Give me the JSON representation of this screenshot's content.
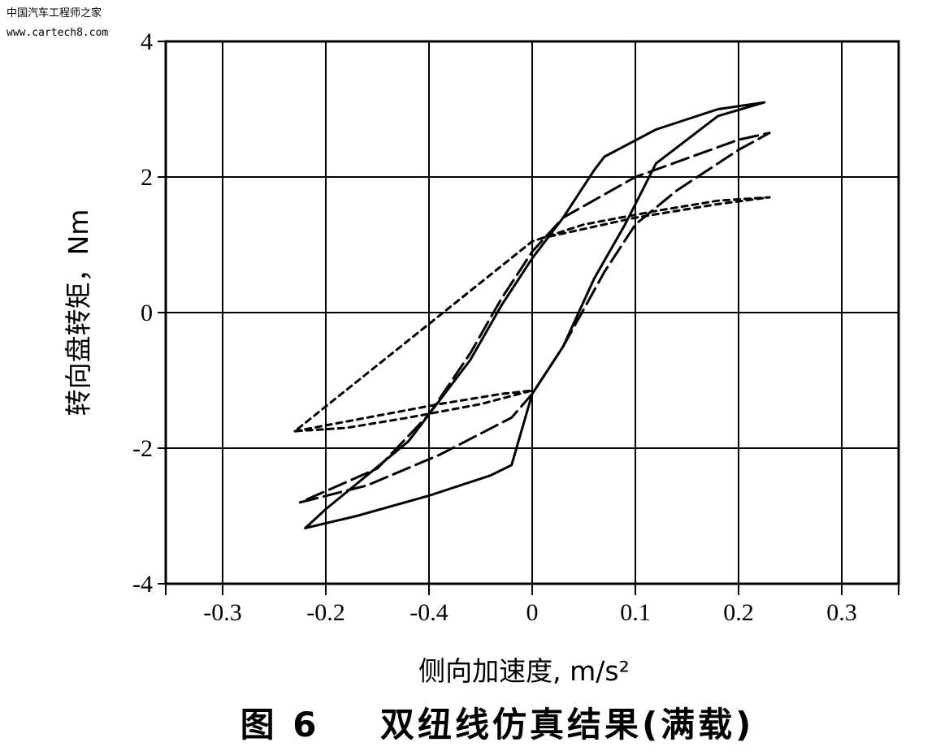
{
  "watermark": {
    "line1": "中国汽车工程师之家",
    "line2": "www.cartech8.com"
  },
  "chart_data": {
    "type": "line",
    "title": "",
    "caption": "图 6    双纽线仿真结果(满载)",
    "xlabel": "侧向加速度, m/s²",
    "ylabel": "转向盘转矩，Nm",
    "ylim": [
      -4,
      4
    ],
    "y_ticks": [
      {
        "value": 4,
        "label": "4"
      },
      {
        "value": 2,
        "label": "2"
      },
      {
        "value": 0,
        "label": "0"
      },
      {
        "value": -2,
        "label": "-2"
      },
      {
        "value": -4,
        "label": "-4"
      }
    ],
    "x_tick_labels": [
      "-0.3",
      "-0.2",
      "-0.4",
      "0",
      "0.1",
      "0.2",
      "0.3"
    ],
    "grid": true,
    "series": [
      {
        "style": "solid",
        "points": [
          [
            -0.22,
            -3.18
          ],
          [
            -0.17,
            -3.0
          ],
          [
            -0.1,
            -2.7
          ],
          [
            -0.04,
            -2.4
          ],
          [
            -0.02,
            -2.25
          ],
          [
            0.0,
            -1.2
          ],
          [
            0.03,
            -0.5
          ],
          [
            0.06,
            0.5
          ],
          [
            0.09,
            1.3
          ],
          [
            0.12,
            2.2
          ],
          [
            0.18,
            2.9
          ],
          [
            0.225,
            3.1
          ],
          [
            0.18,
            3.0
          ],
          [
            0.12,
            2.7
          ],
          [
            0.07,
            2.3
          ],
          [
            0.06,
            2.1
          ],
          [
            0.03,
            1.4
          ],
          [
            0.0,
            0.8
          ],
          [
            -0.03,
            0.1
          ],
          [
            -0.06,
            -0.7
          ],
          [
            -0.09,
            -1.3
          ],
          [
            -0.12,
            -1.9
          ],
          [
            -0.2,
            -2.9
          ],
          [
            -0.22,
            -3.18
          ]
        ]
      },
      {
        "style": "dashed",
        "points": [
          [
            -0.225,
            -2.8
          ],
          [
            -0.16,
            -2.55
          ],
          [
            -0.09,
            -2.1
          ],
          [
            -0.02,
            -1.55
          ],
          [
            0.0,
            -1.2
          ],
          [
            0.03,
            -0.5
          ],
          [
            0.07,
            0.6
          ],
          [
            0.1,
            1.3
          ],
          [
            0.14,
            1.8
          ],
          [
            0.2,
            2.4
          ],
          [
            0.23,
            2.65
          ],
          [
            0.2,
            2.55
          ],
          [
            0.1,
            2.0
          ],
          [
            0.03,
            1.4
          ],
          [
            0.0,
            0.9
          ],
          [
            -0.03,
            0.2
          ],
          [
            -0.06,
            -0.6
          ],
          [
            -0.1,
            -1.5
          ],
          [
            -0.15,
            -2.3
          ],
          [
            -0.225,
            -2.8
          ]
        ]
      },
      {
        "style": "dotted",
        "points": [
          [
            -0.23,
            -1.75
          ],
          [
            -0.16,
            -1.55
          ],
          [
            -0.09,
            -1.35
          ],
          [
            -0.03,
            -1.2
          ],
          [
            0.0,
            -1.15
          ],
          [
            -0.05,
            -1.35
          ],
          [
            -0.12,
            -1.55
          ],
          [
            -0.18,
            -1.7
          ],
          [
            -0.23,
            -1.75
          ],
          [
            0.0,
            1.05
          ],
          [
            0.05,
            1.3
          ],
          [
            0.12,
            1.5
          ],
          [
            0.18,
            1.65
          ],
          [
            0.23,
            1.7
          ],
          [
            0.18,
            1.6
          ],
          [
            0.1,
            1.4
          ],
          [
            0.04,
            1.2
          ],
          [
            0.01,
            1.1
          ]
        ]
      }
    ]
  }
}
